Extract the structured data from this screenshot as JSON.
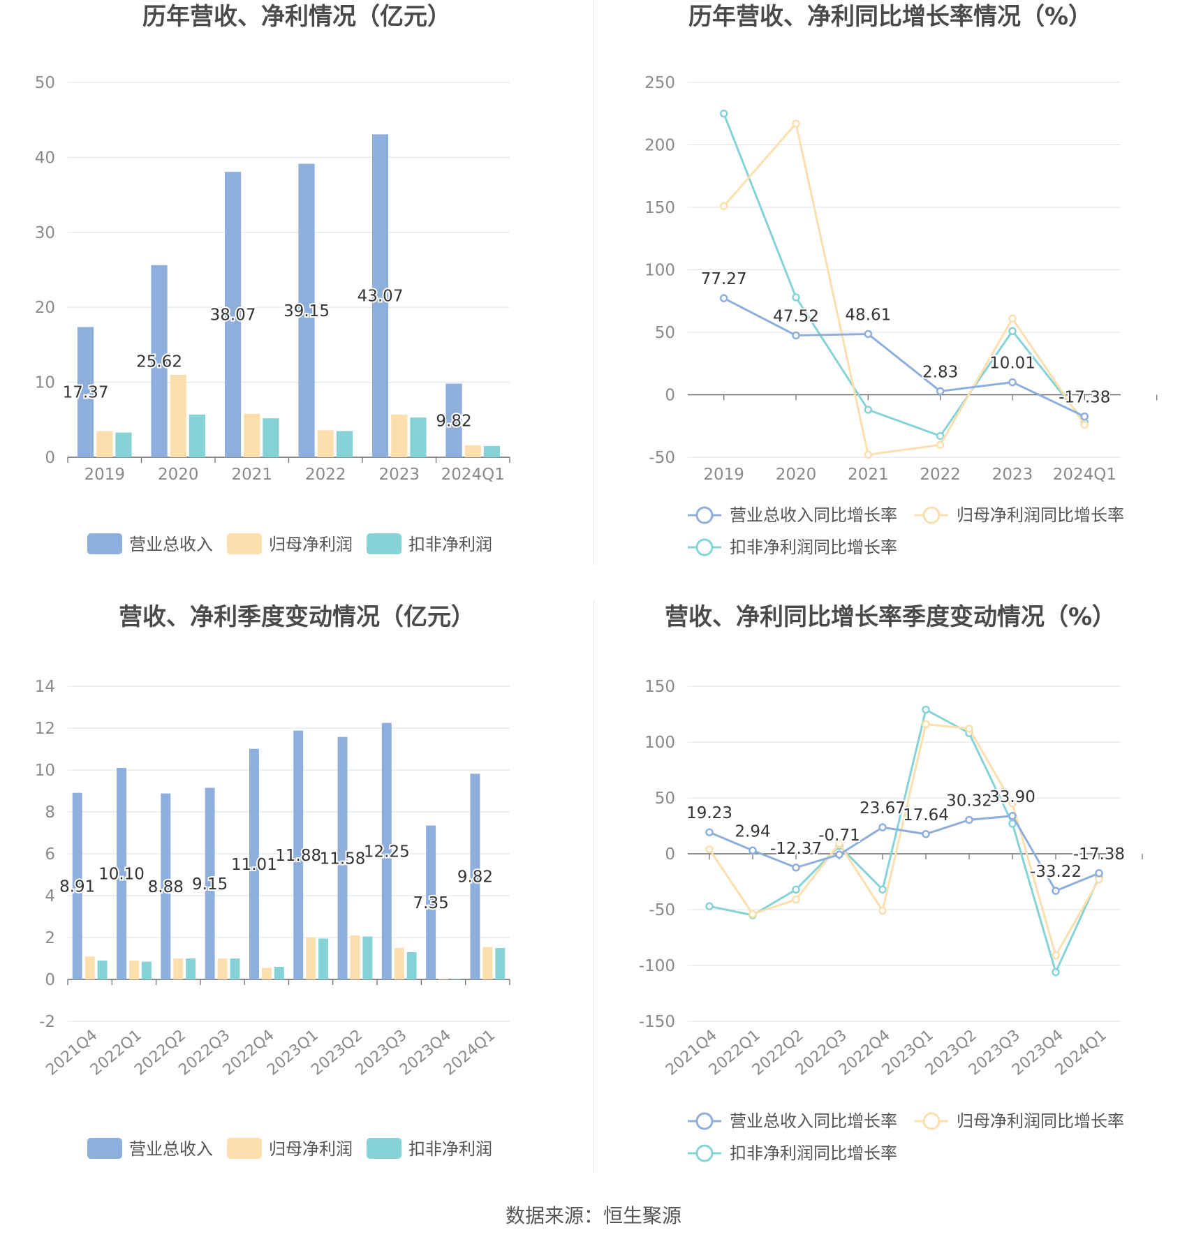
{
  "source_text": "数据来源：恒生聚源",
  "colors": {
    "blue": "#8eaedc",
    "yellow": "#fddfae",
    "teal": "#85d3d7",
    "grid": "#e2e6ef",
    "axis": "#666666",
    "tick": "#8a8a8a"
  },
  "chart_data": [
    {
      "type": "bar",
      "title": "历年营收、净利情况（亿元）",
      "categories": [
        "2019",
        "2020",
        "2021",
        "2022",
        "2023",
        "2024Q1"
      ],
      "ylim": [
        0,
        50
      ],
      "yticks": [
        0,
        10,
        20,
        30,
        40,
        50
      ],
      "series": [
        {
          "name": "营业总收入",
          "color": "#8eaedc",
          "values": [
            17.37,
            25.62,
            38.07,
            39.15,
            43.07,
            9.82
          ],
          "labels": [
            "17.37",
            "25.62",
            "38.07",
            "39.15",
            "43.07",
            "9.82"
          ]
        },
        {
          "name": "归母净利润",
          "color": "#fddfae",
          "values": [
            3.5,
            11.0,
            5.8,
            3.6,
            5.7,
            1.6
          ]
        },
        {
          "name": "扣非净利润",
          "color": "#85d3d7",
          "values": [
            3.3,
            5.7,
            5.2,
            3.5,
            5.3,
            1.5
          ]
        }
      ],
      "legend": "bottom",
      "grid": true
    },
    {
      "type": "line",
      "title": "历年营收、净利同比增长率情况（%）",
      "categories": [
        "2019",
        "2020",
        "2021",
        "2022",
        "2023",
        "2024Q1"
      ],
      "ylim": [
        -50,
        250
      ],
      "yticks": [
        -50,
        0,
        50,
        100,
        150,
        200,
        250
      ],
      "series": [
        {
          "name": "营业总收入同比增长率",
          "color": "#8eaedc",
          "values": [
            77.27,
            47.52,
            48.61,
            2.83,
            10.01,
            -17.38
          ],
          "labels": [
            "77.27",
            "47.52",
            "48.61",
            "2.83",
            "10.01",
            "-17.38"
          ]
        },
        {
          "name": "归母净利润同比增长率",
          "color": "#fddfae",
          "values": [
            151,
            217,
            -48,
            -40,
            61,
            -24
          ]
        },
        {
          "name": "扣非净利润同比增长率",
          "color": "#85d3d7",
          "values": [
            225,
            78,
            -12,
            -33,
            51,
            -22
          ]
        }
      ],
      "legend": "bottom",
      "grid": true
    },
    {
      "type": "bar",
      "title": "营收、净利季度变动情况（亿元）",
      "categories": [
        "2021Q4",
        "2022Q1",
        "2022Q2",
        "2022Q3",
        "2022Q4",
        "2023Q1",
        "2023Q2",
        "2023Q3",
        "2023Q4",
        "2024Q1"
      ],
      "ylim": [
        -2,
        14
      ],
      "yticks": [
        -2,
        0,
        2,
        4,
        6,
        8,
        10,
        12,
        14
      ],
      "series": [
        {
          "name": "营业总收入",
          "color": "#8eaedc",
          "values": [
            8.91,
            10.1,
            8.88,
            9.15,
            11.01,
            11.88,
            11.58,
            12.25,
            7.35,
            9.82
          ],
          "labels": [
            "8.91",
            "10.10",
            "8.88",
            "9.15",
            "11.01",
            "11.88",
            "11.58",
            "12.25",
            "7.35",
            "9.82"
          ]
        },
        {
          "name": "归母净利润",
          "color": "#fddfae",
          "values": [
            1.1,
            0.9,
            1.0,
            1.0,
            0.55,
            2.0,
            2.1,
            1.5,
            0.03,
            1.55
          ]
        },
        {
          "name": "扣非净利润",
          "color": "#85d3d7",
          "values": [
            0.9,
            0.85,
            1.0,
            1.0,
            0.6,
            1.95,
            2.05,
            1.3,
            0.02,
            1.5
          ]
        }
      ],
      "legend": "bottom",
      "grid": true
    },
    {
      "type": "line",
      "title": "营收、净利同比增长率季度变动情况（%）",
      "categories": [
        "2021Q4",
        "2022Q1",
        "2022Q2",
        "2022Q3",
        "2022Q4",
        "2023Q1",
        "2023Q2",
        "2023Q3",
        "2023Q4",
        "2024Q1"
      ],
      "ylim": [
        -150,
        150
      ],
      "yticks": [
        -150,
        -100,
        -50,
        0,
        50,
        100,
        150
      ],
      "series": [
        {
          "name": "营业总收入同比增长率",
          "color": "#8eaedc",
          "values": [
            19.23,
            2.94,
            -12.37,
            -0.71,
            23.67,
            17.64,
            30.32,
            33.9,
            -33.22,
            -17.38
          ],
          "labels": [
            "19.23",
            "2.94",
            "-12.37",
            "-0.71",
            "23.67",
            "17.64",
            "30.32",
            "33.90",
            "-33.22",
            "-17.38"
          ]
        },
        {
          "name": "归母净利润同比增长率",
          "color": "#fddfae",
          "values": [
            4,
            -54,
            -41,
            9,
            -51,
            116,
            112,
            45,
            -91,
            -23
          ]
        },
        {
          "name": "扣非净利润同比增长率",
          "color": "#85d3d7",
          "values": [
            -47,
            -55,
            -32,
            7,
            -32,
            129,
            108,
            27,
            -106,
            -21
          ]
        }
      ],
      "legend": "bottom",
      "grid": true
    }
  ]
}
